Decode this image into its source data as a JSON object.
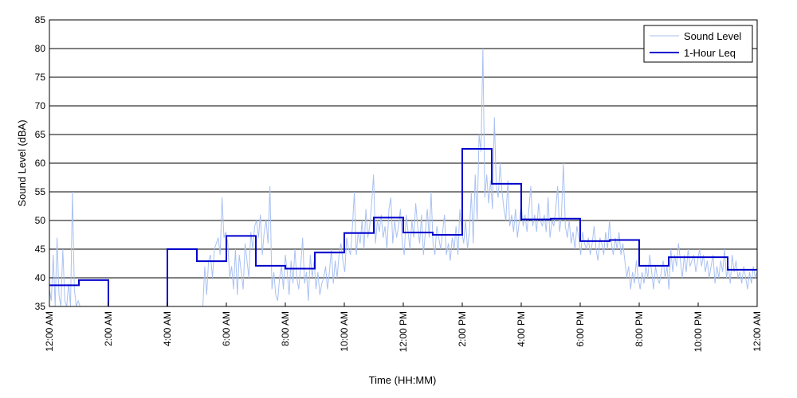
{
  "chart_data": {
    "type": "line",
    "xlabel": "Time (HH:MM)",
    "ylabel": "Sound Level (dBA)",
    "ylim": [
      35,
      85
    ],
    "xlim": [
      0,
      24
    ],
    "grid": "horizontal",
    "legend_position": "top-right",
    "y_ticks": [
      35,
      40,
      45,
      50,
      55,
      60,
      65,
      70,
      75,
      80,
      85
    ],
    "x_ticks": [
      {
        "hour": 0,
        "label": "12:00 AM"
      },
      {
        "hour": 2,
        "label": "2:00 AM"
      },
      {
        "hour": 4,
        "label": "4:00 AM"
      },
      {
        "hour": 6,
        "label": "6:00 AM"
      },
      {
        "hour": 8,
        "label": "8:00 AM"
      },
      {
        "hour": 10,
        "label": "10:00 AM"
      },
      {
        "hour": 12,
        "label": "12:00 PM"
      },
      {
        "hour": 14,
        "label": "2:00 PM"
      },
      {
        "hour": 16,
        "label": "4:00 PM"
      },
      {
        "hour": 18,
        "label": "6:00 PM"
      },
      {
        "hour": 20,
        "label": "8:00 PM"
      },
      {
        "hour": 22,
        "label": "10:00 PM"
      },
      {
        "hour": 24,
        "label": "12:00 AM"
      }
    ],
    "series": [
      {
        "name": "Sound Level",
        "color": "#a9c1f2",
        "hour_start": 0,
        "hour_end": 24,
        "values": [
          38,
          36,
          44,
          35,
          47,
          37,
          35,
          45,
          36,
          35,
          39,
          35,
          55,
          38,
          35,
          36,
          35,
          35,
          35,
          35,
          35,
          35,
          35,
          35,
          35,
          35,
          35,
          35,
          35,
          35,
          35,
          35,
          35,
          35,
          35,
          35,
          35,
          35,
          35,
          35,
          35,
          35,
          35,
          35,
          35,
          35,
          35,
          35,
          35,
          35,
          35,
          35,
          35,
          35,
          35,
          35,
          35,
          35,
          35,
          35,
          35,
          35,
          35,
          35,
          35,
          35,
          35,
          35,
          35,
          35,
          35,
          35,
          35,
          35,
          35,
          35,
          35,
          35,
          35,
          35,
          35,
          42,
          37,
          43,
          44,
          40,
          45,
          46,
          47,
          44,
          54,
          47,
          48,
          46,
          40,
          42,
          38,
          45,
          37,
          44,
          41,
          38,
          46,
          43,
          40,
          48,
          45,
          49,
          50,
          47,
          51,
          44,
          48,
          50,
          46,
          56,
          38,
          41,
          37,
          36,
          40,
          42,
          38,
          44,
          41,
          37,
          43,
          39,
          45,
          40,
          38,
          42,
          47,
          39,
          41,
          36,
          44,
          40,
          43,
          38,
          41,
          37,
          39,
          40,
          42,
          38,
          41,
          45,
          39,
          43,
          40,
          44,
          46,
          43,
          41,
          47,
          45,
          44,
          49,
          55,
          44,
          48,
          46,
          50,
          45,
          52,
          47,
          49,
          53,
          58,
          46,
          50,
          48,
          51,
          47,
          49,
          45,
          52,
          54,
          46,
          50,
          47,
          49,
          52,
          46,
          44,
          51,
          48,
          45,
          50,
          47,
          53,
          49,
          46,
          51,
          44,
          48,
          52,
          47,
          55,
          46,
          44,
          49,
          47,
          45,
          48,
          51,
          44,
          46,
          43,
          47,
          45,
          49,
          44,
          52,
          48,
          46,
          50,
          45,
          48,
          55,
          46,
          58,
          50,
          65,
          62,
          80,
          54,
          58,
          53,
          57,
          52,
          68,
          56,
          54,
          60,
          55,
          52,
          50,
          57,
          49,
          51,
          48,
          52,
          47,
          50,
          53,
          49,
          51,
          48,
          52,
          56,
          49,
          51,
          48,
          53,
          50,
          49,
          51,
          48,
          54,
          47,
          50,
          49,
          52,
          56,
          48,
          51,
          60,
          49,
          47,
          50,
          46,
          48,
          45,
          49,
          47,
          44,
          48,
          46,
          45,
          47,
          44,
          46,
          49,
          45,
          43,
          47,
          46,
          44,
          48,
          45,
          50,
          46,
          44,
          47,
          45,
          48,
          44,
          46,
          43,
          40,
          42,
          38,
          41,
          39,
          43,
          40,
          38,
          41,
          39,
          42,
          40,
          44,
          41,
          38,
          42,
          40,
          39,
          41,
          43,
          40,
          42,
          38,
          45,
          41,
          44,
          42,
          46,
          43,
          40,
          44,
          41,
          45,
          42,
          43,
          44,
          41,
          43,
          45,
          42,
          44,
          41,
          43,
          40,
          42,
          44,
          39,
          42,
          40,
          43,
          41,
          45,
          40,
          42,
          39,
          44,
          41,
          43,
          40,
          41,
          39,
          42,
          40,
          38,
          41,
          39,
          42,
          40,
          41
        ]
      },
      {
        "name": "1-Hour Leq",
        "color": "#0000cc",
        "type": "step",
        "values": [
          38.7,
          39.6,
          30,
          30,
          45.0,
          42.9,
          47.3,
          42.1,
          41.6,
          44.4,
          47.8,
          50.5,
          47.9,
          47.5,
          62.5,
          56.4,
          50.2,
          50.3,
          46.4,
          46.6,
          42.1,
          43.6,
          43.6,
          41.4
        ]
      }
    ]
  }
}
